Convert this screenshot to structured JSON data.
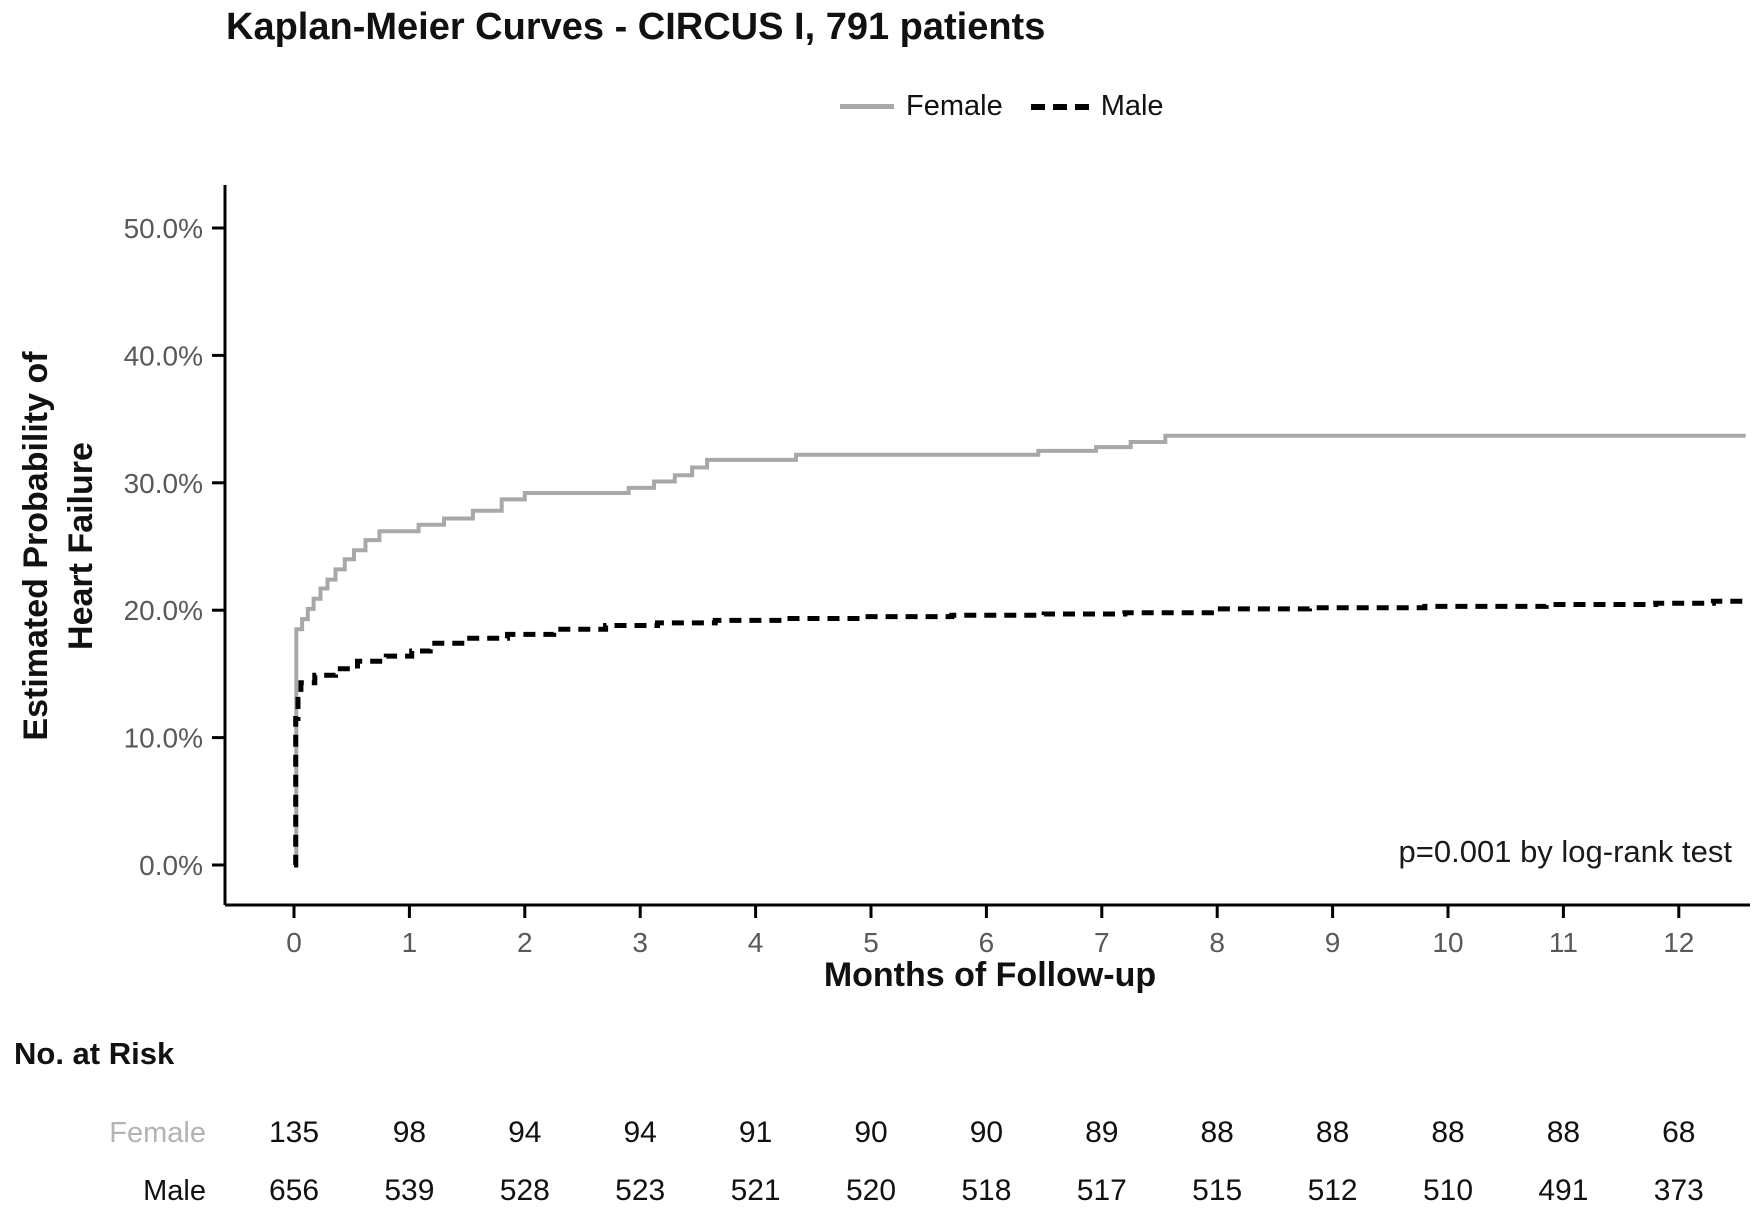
{
  "title": "Kaplan-Meier Curves - CIRCUS I, 791 patients",
  "legend": {
    "female_label": "Female",
    "male_label": "Male"
  },
  "annotation": {
    "pvalue_text": "p=0.001 by log-rank test"
  },
  "axes": {
    "y_title_line1": "Estimated Probability of",
    "y_title_line2": "Heart Failure",
    "x_title": "Months of Follow-up",
    "y_tick_labels": [
      "0.0%",
      "10.0%",
      "20.0%",
      "30.0%",
      "40.0%",
      "50.0%"
    ],
    "y_tick_values": [
      0,
      10,
      20,
      30,
      40,
      50
    ],
    "x_tick_labels": [
      "0",
      "1",
      "2",
      "3",
      "4",
      "5",
      "6",
      "7",
      "8",
      "9",
      "10",
      "11",
      "12"
    ],
    "x_tick_values": [
      0,
      1,
      2,
      3,
      4,
      5,
      6,
      7,
      8,
      9,
      10,
      11,
      12
    ]
  },
  "risk_table": {
    "title": "No. at Risk",
    "rows": [
      {
        "label": "Female",
        "values": [
          "135",
          "98",
          "94",
          "94",
          "91",
          "90",
          "90",
          "89",
          "88",
          "88",
          "88",
          "88",
          "68"
        ]
      },
      {
        "label": "Male",
        "values": [
          "656",
          "539",
          "528",
          "523",
          "521",
          "520",
          "518",
          "517",
          "515",
          "512",
          "510",
          "491",
          "373"
        ]
      }
    ]
  },
  "chart_data": {
    "type": "line",
    "subtype": "kaplan-meier-step",
    "title": "Kaplan-Meier Curves - CIRCUS I, 791 patients",
    "xlabel": "Months of Follow-up",
    "ylabel": "Estimated Probability of Heart Failure",
    "xlim": [
      0,
      12.6
    ],
    "ylim_percent": [
      0,
      50
    ],
    "grid": false,
    "legend_position": "top",
    "x_end_month": 12.58,
    "series": [
      {
        "name": "Female",
        "color": "#a8a8a8",
        "style": "solid",
        "points_month_percent": [
          [
            0,
            0
          ],
          [
            0.02,
            18.5
          ],
          [
            0.07,
            19.3
          ],
          [
            0.12,
            20.1
          ],
          [
            0.17,
            20.9
          ],
          [
            0.23,
            21.7
          ],
          [
            0.29,
            22.4
          ],
          [
            0.36,
            23.2
          ],
          [
            0.44,
            24.0
          ],
          [
            0.52,
            24.7
          ],
          [
            0.62,
            25.5
          ],
          [
            0.74,
            26.2
          ],
          [
            1.08,
            26.7
          ],
          [
            1.3,
            27.2
          ],
          [
            1.55,
            27.8
          ],
          [
            1.8,
            28.7
          ],
          [
            2.0,
            29.2
          ],
          [
            2.9,
            29.6
          ],
          [
            3.12,
            30.1
          ],
          [
            3.3,
            30.6
          ],
          [
            3.45,
            31.2
          ],
          [
            3.58,
            31.8
          ],
          [
            4.35,
            32.2
          ],
          [
            6.45,
            32.5
          ],
          [
            6.95,
            32.8
          ],
          [
            7.25,
            33.2
          ],
          [
            7.55,
            33.7
          ]
        ]
      },
      {
        "name": "Male",
        "color": "#000000",
        "style": "dashed",
        "points_month_percent": [
          [
            0,
            0
          ],
          [
            0.015,
            11.5
          ],
          [
            0.035,
            13.0
          ],
          [
            0.06,
            14.3
          ],
          [
            0.18,
            14.9
          ],
          [
            0.36,
            15.4
          ],
          [
            0.55,
            16.0
          ],
          [
            0.8,
            16.4
          ],
          [
            1.02,
            16.8
          ],
          [
            1.18,
            17.4
          ],
          [
            1.5,
            17.8
          ],
          [
            1.85,
            18.1
          ],
          [
            2.25,
            18.5
          ],
          [
            2.7,
            18.8
          ],
          [
            3.15,
            19.0
          ],
          [
            3.65,
            19.2
          ],
          [
            4.25,
            19.35
          ],
          [
            4.95,
            19.5
          ],
          [
            5.7,
            19.6
          ],
          [
            6.5,
            19.7
          ],
          [
            7.2,
            19.8
          ],
          [
            7.95,
            20.1
          ],
          [
            8.8,
            20.2
          ],
          [
            9.8,
            20.3
          ],
          [
            10.85,
            20.45
          ],
          [
            11.8,
            20.55
          ],
          [
            12.3,
            20.7
          ]
        ]
      }
    ],
    "annotations": [
      {
        "text": "p=0.001 by log-rank test",
        "position": "bottom-right"
      }
    ]
  },
  "colors": {
    "female_curve": "#a8a8a8",
    "male_curve": "#000000",
    "axis": "#000000",
    "tick_label": "#595959",
    "female_risk_label": "#b3b3b3"
  }
}
